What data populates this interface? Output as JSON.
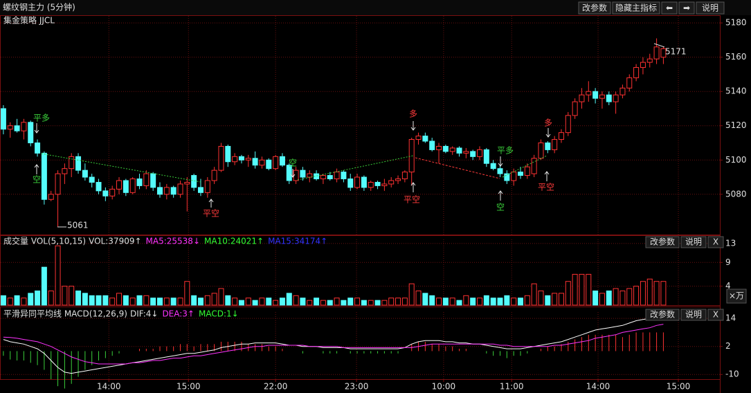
{
  "window": {
    "title": "螺纹钢主力 (5分钟)",
    "buttons": [
      "改参数",
      "隐藏主指标",
      "⬅",
      "➡",
      "说明"
    ]
  },
  "chart_data": [
    {
      "type": "candlestick",
      "title": "集金策略 JJCL",
      "open": [
        5130,
        5118,
        5120,
        5117,
        5122,
        5110,
        5104,
        5077,
        5080,
        5092,
        5095,
        5102,
        5094,
        5090,
        5087,
        5082,
        5079,
        5083,
        5088,
        5081,
        5089,
        5085,
        5092,
        5084,
        5080,
        5084,
        5080,
        5086,
        5091,
        5084,
        5081,
        5088,
        5094,
        5108,
        5099,
        5102,
        5100,
        5101,
        5097,
        5100,
        5095,
        5102,
        5097,
        5088,
        5094,
        5090,
        5092,
        5089,
        5091,
        5089,
        5093,
        5089,
        5084,
        5090,
        5084,
        5087,
        5085,
        5086,
        5088,
        5089,
        5093,
        5112,
        5114,
        5111,
        5106,
        5108,
        5105,
        5107,
        5104,
        5105,
        5102,
        5106,
        5098,
        5095,
        5092,
        5088,
        5093,
        5091,
        5092,
        5101,
        5110,
        5106,
        5112,
        5116,
        5126,
        5134,
        5138,
        5140,
        5136,
        5138,
        5134,
        5138,
        5142,
        5148,
        5154,
        5157,
        5159,
        5160
      ],
      "high": [
        5132,
        5122,
        5124,
        5124,
        5123,
        5112,
        5105,
        5082,
        5094,
        5098,
        5104,
        5104,
        5098,
        5092,
        5089,
        5084,
        5085,
        5090,
        5089,
        5090,
        5092,
        5094,
        5093,
        5087,
        5086,
        5085,
        5088,
        5090,
        5092,
        5089,
        5090,
        5096,
        5110,
        5109,
        5104,
        5103,
        5103,
        5105,
        5102,
        5101,
        5103,
        5104,
        5098,
        5096,
        5096,
        5094,
        5094,
        5092,
        5093,
        5095,
        5094,
        5092,
        5092,
        5091,
        5088,
        5088,
        5089,
        5090,
        5091,
        5094,
        5113,
        5116,
        5116,
        5113,
        5110,
        5109,
        5108,
        5108,
        5107,
        5106,
        5108,
        5107,
        5100,
        5097,
        5094,
        5095,
        5096,
        5098,
        5103,
        5112,
        5111,
        5114,
        5118,
        5128,
        5136,
        5142,
        5146,
        5142,
        5140,
        5140,
        5140,
        5144,
        5150,
        5156,
        5160,
        5162,
        5171,
        5166
      ],
      "low": [
        5115,
        5113,
        5116,
        5112,
        5108,
        5102,
        5074,
        5076,
        5061,
        5086,
        5090,
        5092,
        5088,
        5084,
        5080,
        5076,
        5077,
        5080,
        5079,
        5080,
        5083,
        5083,
        5082,
        5078,
        5077,
        5078,
        5078,
        5070,
        5082,
        5079,
        5078,
        5086,
        5093,
        5096,
        5097,
        5098,
        5096,
        5095,
        5095,
        5094,
        5094,
        5096,
        5086,
        5086,
        5088,
        5087,
        5088,
        5086,
        5088,
        5087,
        5087,
        5082,
        5083,
        5082,
        5082,
        5083,
        5082,
        5084,
        5086,
        5087,
        5085,
        5109,
        5110,
        5105,
        5098,
        5104,
        5103,
        5102,
        5101,
        5100,
        5100,
        5096,
        5094,
        5090,
        5086,
        5085,
        5089,
        5089,
        5090,
        5100,
        5104,
        5104,
        5110,
        5114,
        5124,
        5130,
        5134,
        5133,
        5130,
        5132,
        5127,
        5136,
        5140,
        5146,
        5150,
        5154,
        5156,
        5156
      ],
      "close": [
        5118,
        5120,
        5117,
        5122,
        5110,
        5104,
        5077,
        5080,
        5092,
        5095,
        5102,
        5094,
        5090,
        5087,
        5082,
        5079,
        5083,
        5088,
        5081,
        5089,
        5085,
        5092,
        5084,
        5080,
        5084,
        5080,
        5086,
        5087,
        5084,
        5081,
        5088,
        5094,
        5108,
        5099,
        5102,
        5100,
        5101,
        5097,
        5100,
        5095,
        5102,
        5097,
        5088,
        5094,
        5090,
        5092,
        5089,
        5091,
        5089,
        5093,
        5089,
        5084,
        5090,
        5084,
        5087,
        5085,
        5086,
        5088,
        5089,
        5093,
        5112,
        5114,
        5111,
        5106,
        5108,
        5105,
        5107,
        5104,
        5105,
        5102,
        5106,
        5098,
        5095,
        5092,
        5088,
        5093,
        5091,
        5096,
        5101,
        5110,
        5106,
        5112,
        5116,
        5126,
        5134,
        5138,
        5140,
        5136,
        5138,
        5134,
        5138,
        5142,
        5148,
        5154,
        5157,
        5159,
        5166,
        5165
      ],
      "up_color": "#ff3232",
      "down_color": "#54fcfc",
      "xlim": [
        -0.5,
        105.3
      ],
      "xticks": [
        {
          "value": 15.5,
          "label": "14:00"
        },
        {
          "value": 27.2,
          "label": "15:00"
        },
        {
          "value": 40.0,
          "label": "22:00"
        },
        {
          "value": 51.9,
          "label": "23:00"
        },
        {
          "value": 64.7,
          "label": "10:00"
        },
        {
          "value": 74.7,
          "label": "11:00"
        },
        {
          "value": 87.4,
          "label": "14:00"
        },
        {
          "value": 99.2,
          "label": "15:00"
        }
      ],
      "ylim": [
        5056.5,
        5184.5
      ],
      "yticks": [
        5080,
        5100,
        5120,
        5140,
        5160,
        5180
      ],
      "grid": true,
      "annotations": [
        "平多",
        "空",
        "平空",
        "空",
        "多",
        "平空",
        "平多",
        "空",
        "多",
        "平空"
      ]
    },
    {
      "type": "bar",
      "title": "成交量 VOL(5,10,15)",
      "indicators": [
        {
          "text": "VOL:37909↑",
          "color": "#e0e0e0"
        },
        {
          "text": "MA5:25538↓",
          "color": "#ff33ff"
        },
        {
          "text": "MA10:24021↑",
          "color": "#33ff33"
        },
        {
          "text": "MA15:34174↑",
          "color": "#3333ff"
        }
      ],
      "buttons": [
        "改参数",
        "说明",
        "X"
      ],
      "unit": "×万",
      "values": [
        2,
        1.5,
        2,
        1.5,
        2.5,
        3,
        8,
        3,
        12.5,
        4,
        4,
        3,
        2.5,
        2,
        2,
        2,
        1.5,
        2.5,
        2,
        1.5,
        2,
        2,
        1.5,
        1.5,
        1.5,
        1.5,
        1.5,
        5,
        2,
        1.5,
        2,
        2.5,
        3.5,
        2,
        1.5,
        1,
        1.5,
        1,
        1.5,
        1.5,
        1,
        1.5,
        2.5,
        2,
        1.5,
        1,
        1.5,
        1,
        1,
        1.5,
        1,
        1.5,
        1.5,
        1,
        1,
        1,
        1,
        1.5,
        1.5,
        1.5,
        4.5,
        3,
        2.5,
        2,
        1.5,
        1.5,
        1.5,
        1,
        2,
        1.5,
        1.5,
        2,
        1.5,
        1.5,
        2,
        1.5,
        1.5,
        2,
        4.5,
        3,
        2,
        2.5,
        2.5,
        5,
        6.5,
        6.5,
        6.5,
        3,
        2.5,
        3,
        3.5,
        3,
        3.5,
        4,
        5,
        5.5,
        5,
        5
      ],
      "ylim": [
        0,
        14
      ],
      "yticks": [
        4,
        9,
        13
      ]
    },
    {
      "type": "macd",
      "title": "平滑异同平均线 MACD(12,26,9)",
      "indicators": [
        {
          "text": "DIF:4↓",
          "color": "#e0e0e0"
        },
        {
          "text": "DEA:3↑",
          "color": "#ff33ff"
        },
        {
          "text": "MACD:1↓",
          "color": "#33ff33"
        }
      ],
      "buttons": [
        "改参数",
        "说明",
        "X"
      ],
      "series": [
        {
          "name": "DIF",
          "color": "#ffffff",
          "values": [
            5,
            4,
            3.5,
            3,
            2,
            1,
            -1,
            -4,
            -7,
            -9,
            -9.5,
            -9,
            -8.5,
            -8,
            -7.5,
            -7,
            -6.5,
            -6,
            -5.5,
            -5,
            -4.5,
            -4,
            -3.5,
            -3,
            -2.5,
            -2,
            -1.5,
            -1,
            -1,
            -0.5,
            0,
            0.5,
            1.5,
            2,
            2.5,
            3,
            3,
            3.5,
            3.5,
            3.5,
            3.5,
            3,
            2.5,
            2.5,
            2,
            2,
            2,
            1.5,
            1.5,
            1.5,
            1.5,
            1,
            1,
            1,
            1,
            1,
            1,
            1,
            1,
            1.5,
            3,
            4,
            4.5,
            4.5,
            4.5,
            4,
            4,
            3.5,
            3.5,
            3,
            3,
            2.5,
            2,
            1.5,
            1,
            1,
            1,
            1.5,
            2,
            2.5,
            3,
            3.5,
            4,
            5,
            6,
            7,
            8,
            9,
            9.5,
            10,
            10.5,
            11,
            12,
            13,
            13.5,
            14,
            15,
            15.5
          ]
        },
        {
          "name": "DEA",
          "color": "#ff33ff",
          "values": [
            6,
            5.8,
            5.5,
            5,
            4.5,
            4,
            3,
            2,
            0.5,
            -1,
            -2.5,
            -3.5,
            -4.5,
            -5,
            -5.5,
            -5.5,
            -5.5,
            -5.5,
            -5.5,
            -5,
            -5,
            -4.5,
            -4,
            -4,
            -3.5,
            -3,
            -3,
            -2.5,
            -2,
            -2,
            -1.5,
            -1,
            -0.5,
            0,
            0.5,
            1,
            1.5,
            2,
            2,
            2.5,
            2.5,
            2.5,
            2.5,
            2.5,
            2.5,
            2,
            2,
            2,
            2,
            2,
            1.5,
            1.5,
            1.5,
            1.5,
            1.5,
            1.5,
            1.5,
            1.5,
            1.5,
            1.5,
            1.5,
            2,
            2.5,
            3,
            3,
            3,
            3,
            3,
            3,
            3,
            3,
            3,
            3,
            2.5,
            2.5,
            2,
            2,
            2,
            2,
            2,
            2,
            2.5,
            2.5,
            3,
            3.5,
            4,
            4.5,
            5.5,
            6,
            6.5,
            7,
            8,
            8.5,
            9,
            9.5,
            10,
            11,
            11.5
          ]
        }
      ],
      "histogram": [
        -2,
        -3.6,
        -4,
        -4,
        -5,
        -6,
        -8,
        -12,
        -15,
        -16,
        -14,
        -11,
        -8,
        -6,
        -4,
        -3,
        -2,
        -1,
        0,
        0,
        1,
        1,
        1,
        2,
        2,
        2,
        3,
        3,
        2,
        3,
        3,
        3,
        4,
        4,
        4,
        4,
        3,
        3,
        3,
        2,
        2,
        1,
        0,
        0,
        -1,
        0,
        0,
        -1,
        -1,
        -1,
        0,
        -1,
        -1,
        -1,
        -1,
        -1,
        -1,
        -1,
        -1,
        0,
        3,
        4,
        4,
        3,
        3,
        2,
        2,
        1,
        1,
        0,
        0,
        -1,
        -2,
        -2,
        -3,
        -2,
        -2,
        -1,
        0,
        1,
        2,
        2,
        3,
        4,
        5,
        6,
        7,
        7,
        7,
        7,
        7,
        6,
        7,
        8,
        8,
        8,
        8,
        8
      ],
      "pos_color": "#ff3232",
      "neg_color": "#3bd13b",
      "ylim": [
        -12,
        17
      ],
      "yticks": [
        -10,
        2,
        14
      ]
    }
  ]
}
